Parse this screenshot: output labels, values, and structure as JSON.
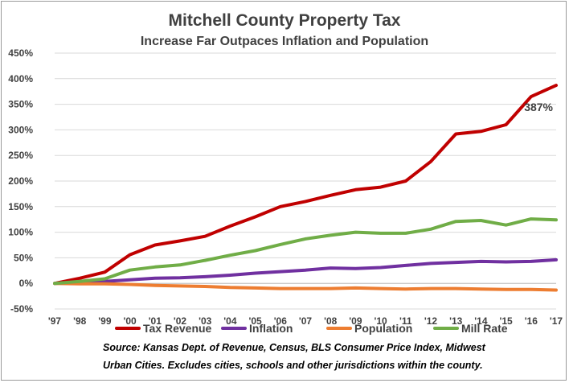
{
  "colors": {
    "tax_revenue": "#c00000",
    "inflation": "#7030a0",
    "population": "#ed7d31",
    "mill_rate": "#70ad47"
  },
  "chart_data": {
    "type": "line",
    "title": "Mitchell County Property Tax",
    "subtitle": "Increase Far Outpaces Inflation and Population",
    "categories": [
      "'97",
      "'98",
      "'99",
      "'00",
      "'01",
      "'02",
      "'03",
      "'04",
      "'05",
      "'06",
      "'07",
      "'08",
      "'09",
      "'10",
      "'11",
      "'12",
      "'13",
      "'14",
      "'15",
      "'16",
      "'17"
    ],
    "y_ticks": [
      "-50%",
      "0%",
      "50%",
      "100%",
      "150%",
      "200%",
      "250%",
      "300%",
      "350%",
      "400%",
      "450%"
    ],
    "ylim": [
      -50,
      450
    ],
    "grid": true,
    "legend_position": "bottom",
    "series": [
      {
        "name": "Tax Revenue",
        "color_key": "tax_revenue",
        "values": [
          0,
          10,
          22,
          56,
          75,
          83,
          92,
          112,
          130,
          150,
          160,
          172,
          183,
          188,
          200,
          238,
          292,
          297,
          310,
          365,
          387
        ]
      },
      {
        "name": "Inflation",
        "color_key": "inflation",
        "values": [
          0,
          2,
          4,
          7,
          10,
          11,
          13,
          16,
          20,
          23,
          26,
          30,
          29,
          31,
          35,
          39,
          41,
          43,
          42,
          43,
          46
        ]
      },
      {
        "name": "Population",
        "color_key": "population",
        "values": [
          0,
          -1,
          -1,
          -2,
          -4,
          -5,
          -6,
          -8,
          -9,
          -10,
          -10,
          -10,
          -9,
          -10,
          -11,
          -10,
          -10,
          -11,
          -12,
          -12,
          -13
        ]
      },
      {
        "name": "Mill Rate",
        "color_key": "mill_rate",
        "values": [
          0,
          4,
          9,
          26,
          32,
          36,
          45,
          55,
          64,
          76,
          87,
          94,
          100,
          98,
          98,
          106,
          121,
          123,
          114,
          126,
          124
        ]
      }
    ],
    "annotations": [
      {
        "text": "387%",
        "series": "Tax Revenue",
        "category": "'17"
      }
    ]
  },
  "source_lines": [
    "Source: Kansas Dept. of Revenue, Census, BLS Consumer Price Index, Midwest",
    "Urban Cities.  Excludes cities, schools and other jurisdictions within the county."
  ]
}
